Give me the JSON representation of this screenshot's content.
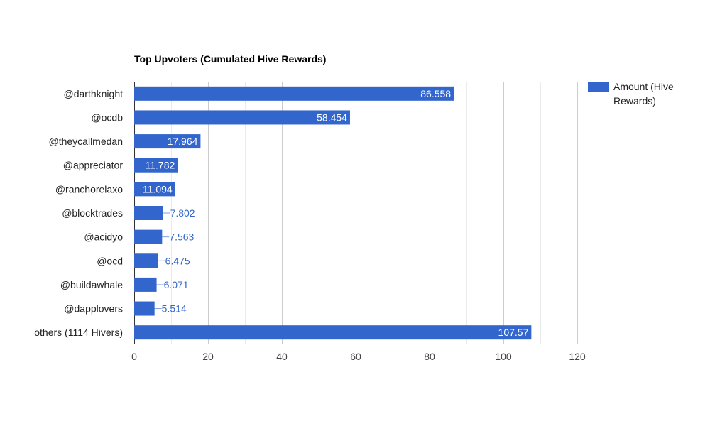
{
  "chart_data": {
    "type": "bar",
    "orientation": "horizontal",
    "title": "Top Upvoters (Cumulated Hive Rewards)",
    "categories": [
      "@darthknight",
      "@ocdb",
      "@theycallmedan",
      "@appreciator",
      "@ranchorelaxo",
      "@blocktrades",
      "@acidyo",
      "@ocd",
      "@buildawhale",
      "@dapplovers",
      "others (1114 Hivers)"
    ],
    "series": [
      {
        "name": "Amount (Hive Rewards)",
        "color": "#3366cc",
        "values": [
          86.558,
          58.454,
          17.964,
          11.782,
          11.094,
          7.802,
          7.563,
          6.475,
          6.071,
          5.514,
          107.57
        ],
        "labels": [
          "86.558",
          "58.454",
          "17.964",
          "11.782",
          "11.094",
          "7.802",
          "7.563",
          "6.475",
          "6.071",
          "5.514",
          "107.57"
        ]
      }
    ],
    "xlim": [
      0,
      120
    ],
    "xticks": [
      0,
      20,
      40,
      60,
      80,
      100,
      120
    ],
    "minor_grid_step": 10,
    "grid": true,
    "legend_position": "top-right",
    "legend_lines": [
      "Amount (Hive",
      "Rewards)"
    ]
  }
}
